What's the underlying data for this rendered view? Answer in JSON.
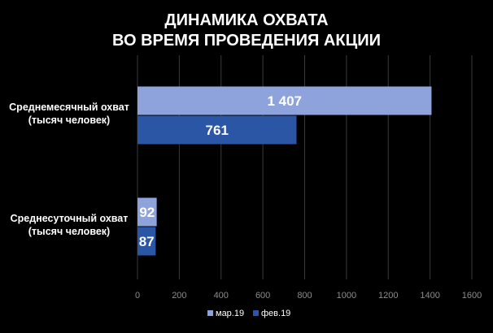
{
  "chart_data": {
    "type": "bar",
    "orientation": "horizontal",
    "title_lines": [
      "ДИНАМИКА ОХВАТА",
      "ВО ВРЕМЯ ПРОВЕДЕНИЯ АКЦИИ"
    ],
    "categories": [
      [
        "Среднемесячный охват",
        "(тысяч человек)"
      ],
      [
        "Среднесуточный охват",
        "(тысяч человек)"
      ]
    ],
    "series": [
      {
        "name": "мар.19",
        "color": "#8ea3dc",
        "values": [
          1407,
          92
        ],
        "labels": [
          "1 407",
          "92"
        ]
      },
      {
        "name": "фев.19",
        "color": "#2b55a5",
        "values": [
          761,
          87
        ],
        "labels": [
          "761",
          "87"
        ]
      }
    ],
    "xlim": [
      0,
      1600
    ],
    "xticks": [
      0,
      200,
      400,
      600,
      800,
      1000,
      1200,
      1400,
      1600
    ],
    "grid": true,
    "legend_position": "bottom"
  }
}
